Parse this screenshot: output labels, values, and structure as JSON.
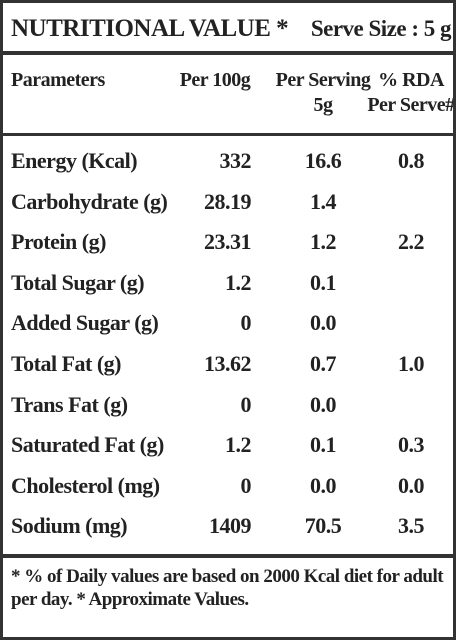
{
  "header": {
    "title": "NUTRITIONAL VALUE *",
    "serve_size": "Serve Size : 5 g"
  },
  "columns": {
    "parameters": "Parameters",
    "per_100g": "Per 100g",
    "per_serving": [
      "Per Serving",
      "5g"
    ],
    "rda": [
      "% RDA",
      "Per Serve#"
    ]
  },
  "rows": [
    {
      "name": "Energy (Kcal)",
      "per_100g": "332",
      "per_serving": "16.6",
      "rda": "0.8"
    },
    {
      "name": "Carbohydrate (g)",
      "per_100g": "28.19",
      "per_serving": "1.4"
    },
    {
      "name": "Protein (g)",
      "per_100g": "23.31",
      "per_serving": "1.2",
      "rda": "2.2"
    },
    {
      "name": "Total Sugar (g)",
      "per_100g": "1.2",
      "per_serving": "0.1"
    },
    {
      "name": "Added Sugar (g)",
      "per_100g": "0",
      "per_serving": "0.0"
    },
    {
      "name": "Total Fat (g)",
      "per_100g": "13.62",
      "per_serving": "0.7",
      "rda": "1.0"
    },
    {
      "name": "Trans Fat (g)",
      "per_100g": "0",
      "per_serving": "0.0"
    },
    {
      "name": "Saturated Fat (g)",
      "per_100g": "1.2",
      "per_serving": "0.1",
      "rda": "0.3"
    },
    {
      "name": "Cholesterol (mg)",
      "per_100g": "0",
      "per_serving": "0.0",
      "rda": "0.0"
    },
    {
      "name": "Sodium (mg)",
      "per_100g": "1409",
      "per_serving": "70.5",
      "rda": "3.5"
    }
  ],
  "footnote": "* % of Daily values are based on 2000 Kcal diet for adult per day. * Approximate Values."
}
